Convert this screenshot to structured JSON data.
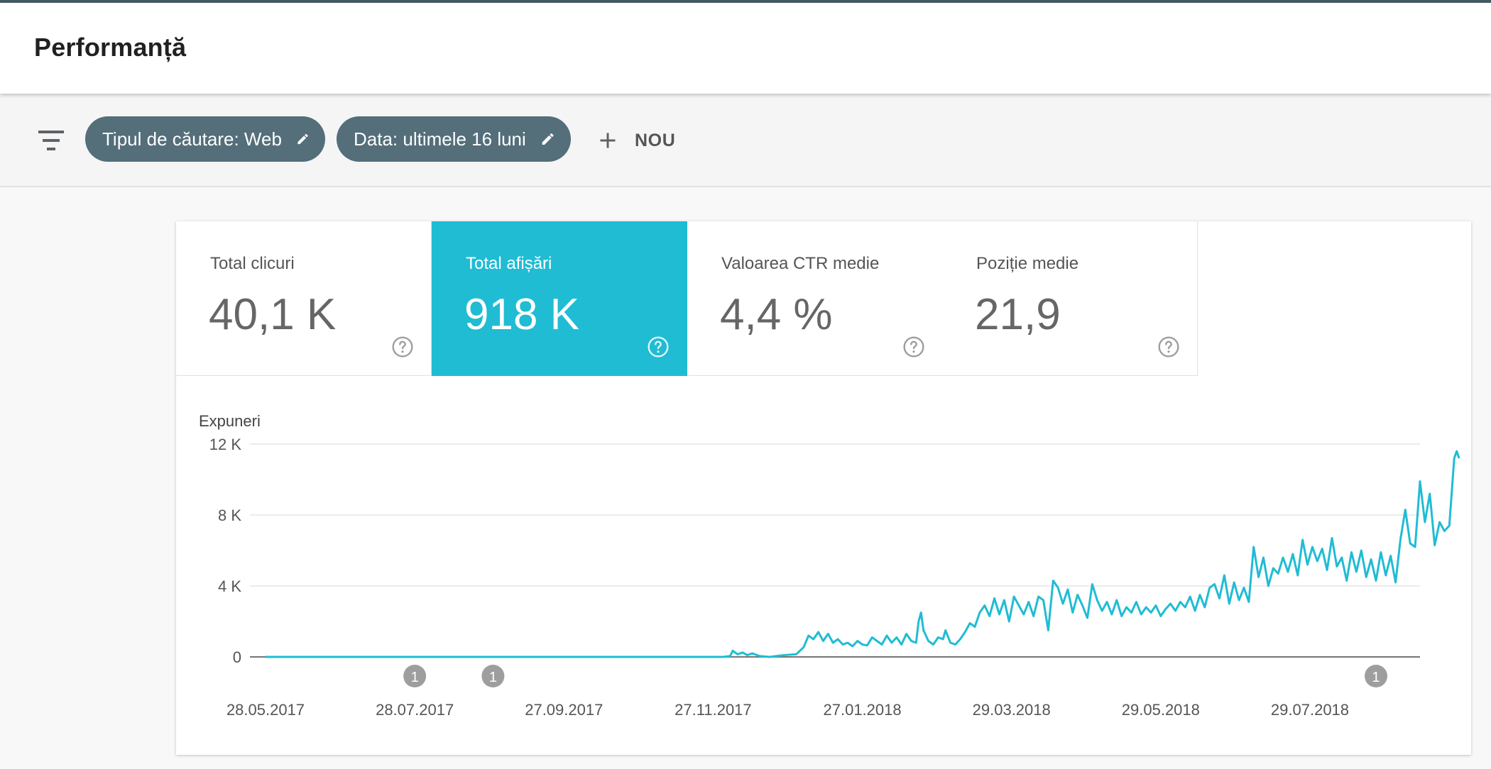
{
  "header": {
    "title": "Performanță"
  },
  "filters": {
    "search_type_chip": "Tipul de căutare: Web",
    "date_chip": "Data: ultimele 16 luni",
    "new_button": "NOU"
  },
  "metrics": [
    {
      "label": "Total clicuri",
      "value": "40,1 K",
      "active": false
    },
    {
      "label": "Total afișări",
      "value": "918 K",
      "active": true
    },
    {
      "label": "Valoarea CTR medie",
      "value": "4,4 %",
      "active": false
    },
    {
      "label": "Poziție medie",
      "value": "21,9",
      "active": false
    }
  ],
  "colors": {
    "accent": "#20bcd4",
    "chip": "#546e7a",
    "header_line": "#455a64"
  },
  "chart_data": {
    "type": "line",
    "ylabel": "Expuneri",
    "ylim": [
      0,
      12000
    ],
    "yticks": [
      0,
      4000,
      8000,
      12000
    ],
    "ytick_labels": [
      "0",
      "4 K",
      "8 K",
      "12 K"
    ],
    "xlim": [
      "2017-05-28",
      "2018-09-12"
    ],
    "xtick_labels": [
      "28.05.2017",
      "28.07.2017",
      "27.09.2017",
      "27.11.2017",
      "27.01.2018",
      "29.03.2018",
      "29.05.2018",
      "29.07.2018"
    ],
    "xtick_dates": [
      "2017-05-28",
      "2017-07-28",
      "2017-09-27",
      "2017-11-27",
      "2018-01-27",
      "2018-03-29",
      "2018-05-29",
      "2018-07-29"
    ],
    "grid": true,
    "annotations": [
      {
        "date": "2017-07-28",
        "label": "1"
      },
      {
        "date": "2017-08-29",
        "label": "1"
      },
      {
        "date": "2018-08-25",
        "label": "1"
      }
    ],
    "series": [
      {
        "name": "",
        "color": "#20bcd4",
        "points": [
          [
            "2017-05-28",
            0
          ],
          [
            "2017-12-01",
            0
          ],
          [
            "2017-12-04",
            50
          ],
          [
            "2017-12-05",
            350
          ],
          [
            "2017-12-07",
            150
          ],
          [
            "2017-12-09",
            250
          ],
          [
            "2017-12-11",
            100
          ],
          [
            "2017-12-13",
            200
          ],
          [
            "2017-12-16",
            50
          ],
          [
            "2017-12-20",
            0
          ],
          [
            "2017-12-26",
            100
          ],
          [
            "2017-12-31",
            150
          ],
          [
            "2018-01-03",
            550
          ],
          [
            "2018-01-05",
            1200
          ],
          [
            "2018-01-07",
            1000
          ],
          [
            "2018-01-09",
            1400
          ],
          [
            "2018-01-11",
            900
          ],
          [
            "2018-01-13",
            1300
          ],
          [
            "2018-01-15",
            800
          ],
          [
            "2018-01-17",
            1000
          ],
          [
            "2018-01-19",
            700
          ],
          [
            "2018-01-21",
            800
          ],
          [
            "2018-01-23",
            600
          ],
          [
            "2018-01-25",
            900
          ],
          [
            "2018-01-27",
            700
          ],
          [
            "2018-01-29",
            650
          ],
          [
            "2018-01-31",
            1100
          ],
          [
            "2018-02-02",
            900
          ],
          [
            "2018-02-04",
            700
          ],
          [
            "2018-02-06",
            1200
          ],
          [
            "2018-02-08",
            800
          ],
          [
            "2018-02-10",
            1100
          ],
          [
            "2018-02-12",
            700
          ],
          [
            "2018-02-14",
            1300
          ],
          [
            "2018-02-16",
            900
          ],
          [
            "2018-02-18",
            800
          ],
          [
            "2018-02-19",
            2000
          ],
          [
            "2018-02-20",
            2500
          ],
          [
            "2018-02-21",
            1500
          ],
          [
            "2018-02-23",
            900
          ],
          [
            "2018-02-25",
            700
          ],
          [
            "2018-02-27",
            1100
          ],
          [
            "2018-03-01",
            1000
          ],
          [
            "2018-03-02",
            1500
          ],
          [
            "2018-03-04",
            800
          ],
          [
            "2018-03-06",
            700
          ],
          [
            "2018-03-08",
            1000
          ],
          [
            "2018-03-10",
            1400
          ],
          [
            "2018-03-12",
            1900
          ],
          [
            "2018-03-14",
            1700
          ],
          [
            "2018-03-16",
            2500
          ],
          [
            "2018-03-18",
            2900
          ],
          [
            "2018-03-20",
            2300
          ],
          [
            "2018-03-22",
            3300
          ],
          [
            "2018-03-24",
            2400
          ],
          [
            "2018-03-26",
            3200
          ],
          [
            "2018-03-28",
            2000
          ],
          [
            "2018-03-30",
            3400
          ],
          [
            "2018-04-01",
            2900
          ],
          [
            "2018-04-03",
            2400
          ],
          [
            "2018-04-05",
            3100
          ],
          [
            "2018-04-07",
            2300
          ],
          [
            "2018-04-09",
            3400
          ],
          [
            "2018-04-11",
            3200
          ],
          [
            "2018-04-13",
            1500
          ],
          [
            "2018-04-15",
            4300
          ],
          [
            "2018-04-17",
            3900
          ],
          [
            "2018-04-19",
            3000
          ],
          [
            "2018-04-21",
            3800
          ],
          [
            "2018-04-23",
            2500
          ],
          [
            "2018-04-25",
            3500
          ],
          [
            "2018-04-27",
            2900
          ],
          [
            "2018-04-29",
            2200
          ],
          [
            "2018-05-01",
            4100
          ],
          [
            "2018-05-03",
            3200
          ],
          [
            "2018-05-05",
            2600
          ],
          [
            "2018-05-07",
            3100
          ],
          [
            "2018-05-09",
            2400
          ],
          [
            "2018-05-11",
            3200
          ],
          [
            "2018-05-13",
            2300
          ],
          [
            "2018-05-15",
            2800
          ],
          [
            "2018-05-17",
            2500
          ],
          [
            "2018-05-19",
            3100
          ],
          [
            "2018-05-21",
            2400
          ],
          [
            "2018-05-23",
            2800
          ],
          [
            "2018-05-25",
            2500
          ],
          [
            "2018-05-27",
            2900
          ],
          [
            "2018-05-29",
            2300
          ],
          [
            "2018-05-31",
            2700
          ],
          [
            "2018-06-02",
            3000
          ],
          [
            "2018-06-04",
            2600
          ],
          [
            "2018-06-06",
            3100
          ],
          [
            "2018-06-08",
            2800
          ],
          [
            "2018-06-10",
            3400
          ],
          [
            "2018-06-12",
            2600
          ],
          [
            "2018-06-14",
            3500
          ],
          [
            "2018-06-16",
            2800
          ],
          [
            "2018-06-18",
            3900
          ],
          [
            "2018-06-20",
            4100
          ],
          [
            "2018-06-22",
            3300
          ],
          [
            "2018-06-24",
            4600
          ],
          [
            "2018-06-26",
            3000
          ],
          [
            "2018-06-28",
            4200
          ],
          [
            "2018-06-30",
            3200
          ],
          [
            "2018-07-02",
            3900
          ],
          [
            "2018-07-04",
            3100
          ],
          [
            "2018-07-06",
            6200
          ],
          [
            "2018-07-08",
            4500
          ],
          [
            "2018-07-10",
            5600
          ],
          [
            "2018-07-12",
            4000
          ],
          [
            "2018-07-14",
            5000
          ],
          [
            "2018-07-16",
            4700
          ],
          [
            "2018-07-18",
            5600
          ],
          [
            "2018-07-20",
            4800
          ],
          [
            "2018-07-22",
            5800
          ],
          [
            "2018-07-24",
            4600
          ],
          [
            "2018-07-26",
            6600
          ],
          [
            "2018-07-28",
            5200
          ],
          [
            "2018-07-30",
            6200
          ],
          [
            "2018-08-01",
            5400
          ],
          [
            "2018-08-03",
            6100
          ],
          [
            "2018-08-05",
            4900
          ],
          [
            "2018-08-07",
            6700
          ],
          [
            "2018-08-09",
            5100
          ],
          [
            "2018-08-11",
            5600
          ],
          [
            "2018-08-13",
            4300
          ],
          [
            "2018-08-15",
            5900
          ],
          [
            "2018-08-17",
            4800
          ],
          [
            "2018-08-19",
            6000
          ],
          [
            "2018-08-21",
            4500
          ],
          [
            "2018-08-23",
            5500
          ],
          [
            "2018-08-25",
            4300
          ],
          [
            "2018-08-27",
            5900
          ],
          [
            "2018-08-29",
            4600
          ],
          [
            "2018-08-31",
            5700
          ],
          [
            "2018-09-02",
            4200
          ],
          [
            "2018-09-04",
            6600
          ],
          [
            "2018-09-06",
            8300
          ],
          [
            "2018-09-08",
            6400
          ],
          [
            "2018-09-10",
            6200
          ],
          [
            "2018-09-12",
            9900
          ],
          [
            "2018-09-14",
            7600
          ],
          [
            "2018-09-16",
            9200
          ],
          [
            "2018-09-18",
            6300
          ],
          [
            "2018-09-20",
            7600
          ],
          [
            "2018-09-22",
            7100
          ],
          [
            "2018-09-24",
            7400
          ],
          [
            "2018-09-26",
            11200
          ],
          [
            "2018-09-27",
            11600
          ],
          [
            "2018-09-28",
            11200
          ]
        ]
      }
    ]
  }
}
